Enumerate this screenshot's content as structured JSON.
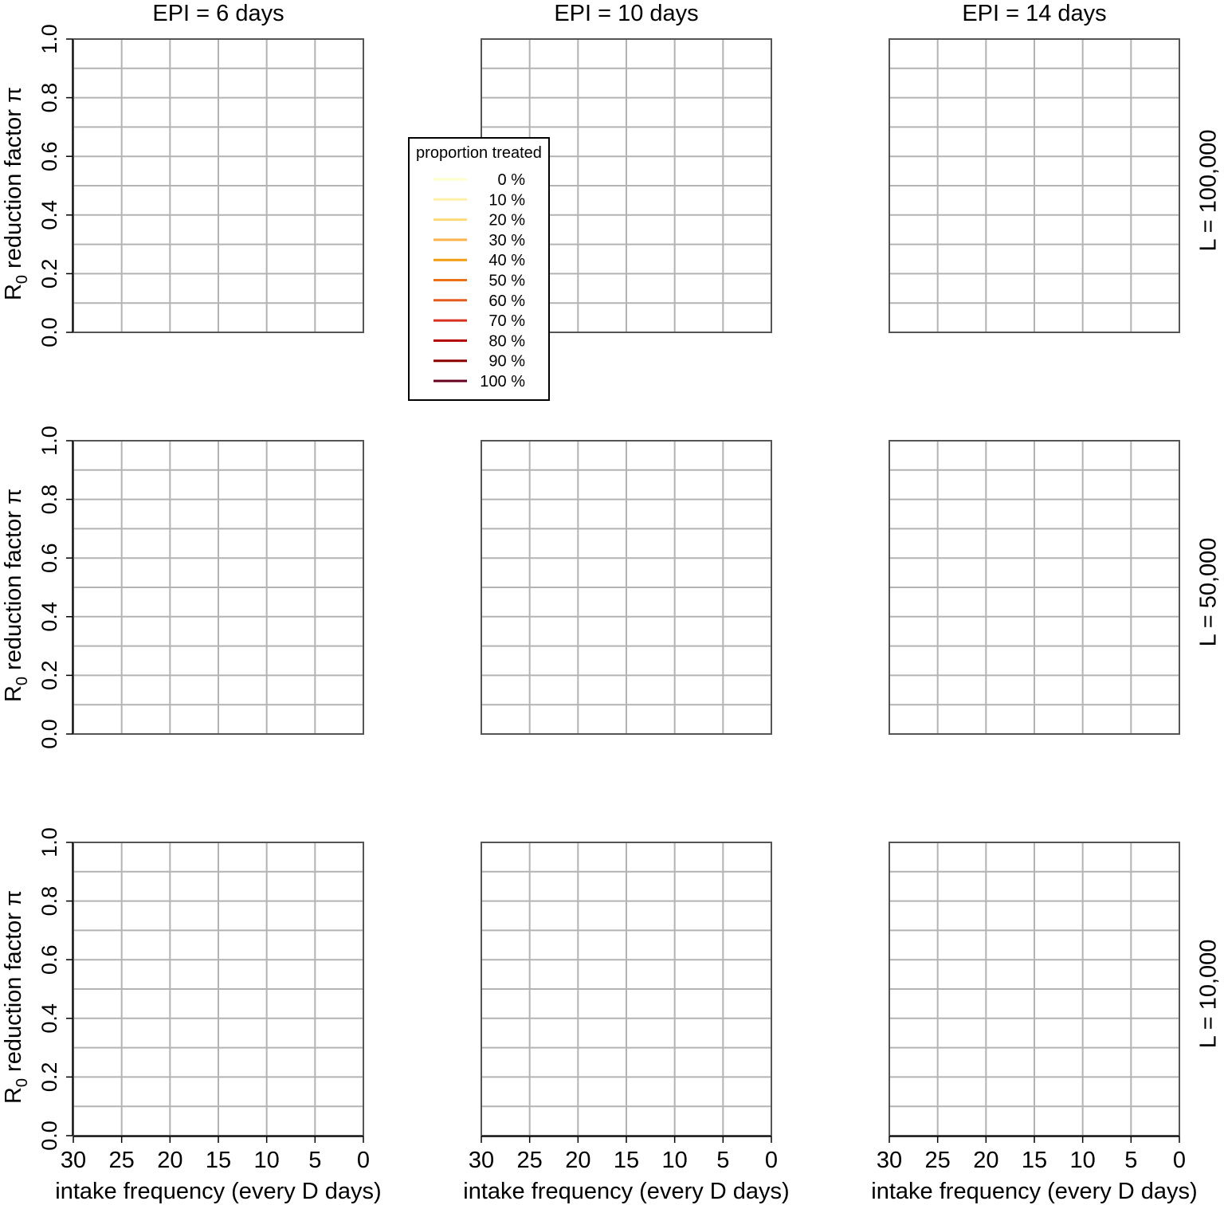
{
  "chart_data": {
    "type": "line",
    "layout": "3x3 facet grid",
    "column_titles": [
      "EPI = 6 days",
      "EPI = 10 days",
      "EPI = 14 days"
    ],
    "row_titles": [
      "L = 100,000",
      "L = 50,000",
      "L = 10,000"
    ],
    "ylabel": {
      "main": "R",
      "sub": "0",
      "rest": " reduction factor π"
    },
    "xlabel": "intake frequency (every D days)",
    "xlim": [
      30,
      0
    ],
    "x_reversed": true,
    "ylim": [
      0,
      1
    ],
    "x_ticks": [
      "30",
      "25",
      "20",
      "15",
      "10",
      "5",
      "0"
    ],
    "y_ticks": [
      "0.0",
      "0.2",
      "0.4",
      "0.6",
      "0.8",
      "1.0"
    ],
    "x_tick_values": [
      30,
      25,
      20,
      15,
      10,
      5,
      0
    ],
    "y_tick_values": [
      0,
      0.2,
      0.4,
      0.6,
      0.8,
      1.0
    ],
    "y_grid_values": [
      0,
      0.1,
      0.2,
      0.3,
      0.4,
      0.5,
      0.6,
      0.7,
      0.8,
      0.9,
      1.0
    ],
    "grid": true,
    "legend": {
      "title": "proportion treated",
      "placement": "top-center",
      "entries": [
        {
          "label": "0 %",
          "color": "#ffffcc"
        },
        {
          "label": "10 %",
          "color": "#fff0a8"
        },
        {
          "label": "20 %",
          "color": "#fed976"
        },
        {
          "label": "30 %",
          "color": "#feb24c"
        },
        {
          "label": "40 %",
          "color": "#f39c12"
        },
        {
          "label": "50 %",
          "color": "#ec7014"
        },
        {
          "label": "60 %",
          "color": "#e25a1c"
        },
        {
          "label": "70 %",
          "color": "#d7301f"
        },
        {
          "label": "80 %",
          "color": "#b30000"
        },
        {
          "label": "90 %",
          "color": "#8b0000"
        },
        {
          "label": "100 %",
          "color": "#67001f"
        }
      ]
    },
    "series": []
  }
}
